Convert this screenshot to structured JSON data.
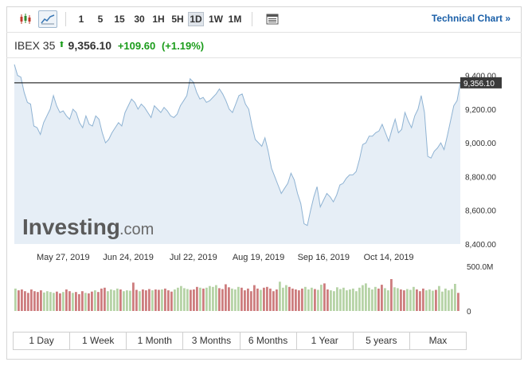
{
  "toolbar": {
    "timeframes": [
      {
        "label": "1",
        "active": false
      },
      {
        "label": "5",
        "active": false
      },
      {
        "label": "15",
        "active": false
      },
      {
        "label": "30",
        "active": false
      },
      {
        "label": "1H",
        "active": false
      },
      {
        "label": "5H",
        "active": false
      },
      {
        "label": "1D",
        "active": true
      },
      {
        "label": "1W",
        "active": false
      },
      {
        "label": "1M",
        "active": false
      }
    ],
    "technical_chart_label": "Technical Chart »"
  },
  "quote": {
    "name": "IBEX 35",
    "arrow": "⬆",
    "price": "9,356.10",
    "change": "+109.60",
    "change_pct": "(+1.19%)"
  },
  "chart_data": {
    "type": "area",
    "ylim": [
      8400,
      9450
    ],
    "yticks": [
      {
        "value": 9400,
        "label": "9,400.00"
      },
      {
        "value": 9200,
        "label": "9,200.00"
      },
      {
        "value": 9000,
        "label": "9,000.00"
      },
      {
        "value": 8800,
        "label": "8,800.00"
      },
      {
        "value": 8600,
        "label": "8,600.00"
      },
      {
        "value": 8400,
        "label": "8,400.00"
      }
    ],
    "xticks": [
      {
        "index": 15,
        "label": "May 27, 2019"
      },
      {
        "index": 35,
        "label": "Jun 24, 2019"
      },
      {
        "index": 55,
        "label": "Jul 22, 2019"
      },
      {
        "index": 75,
        "label": "Aug 19, 2019"
      },
      {
        "index": 95,
        "label": "Sep 16, 2019"
      },
      {
        "index": 115,
        "label": "Oct 14, 2019"
      }
    ],
    "current_value": 9356.1,
    "current_label": "9,356.10",
    "watermark_main": "Investing",
    "watermark_suffix": ".com",
    "values": [
      9465,
      9400,
      9390,
      9300,
      9240,
      9230,
      9100,
      9090,
      9050,
      9120,
      9160,
      9200,
      9280,
      9220,
      9180,
      9190,
      9160,
      9140,
      9200,
      9180,
      9120,
      9090,
      9160,
      9110,
      9100,
      9160,
      9140,
      9060,
      9000,
      9020,
      9060,
      9090,
      9120,
      9100,
      9180,
      9220,
      9260,
      9240,
      9200,
      9230,
      9210,
      9180,
      9150,
      9220,
      9200,
      9180,
      9210,
      9190,
      9160,
      9150,
      9170,
      9220,
      9250,
      9280,
      9380,
      9360,
      9300,
      9260,
      9270,
      9240,
      9250,
      9270,
      9290,
      9320,
      9290,
      9250,
      9200,
      9180,
      9230,
      9280,
      9290,
      9230,
      9200,
      9100,
      9020,
      9000,
      8980,
      9030,
      8950,
      8850,
      8800,
      8750,
      8700,
      8730,
      8760,
      8820,
      8780,
      8700,
      8640,
      8520,
      8510,
      8600,
      8680,
      8740,
      8620,
      8660,
      8700,
      8680,
      8650,
      8690,
      8750,
      8760,
      8790,
      8810,
      8810,
      8830,
      8900,
      8990,
      9000,
      9040,
      9040,
      9060,
      9070,
      9110,
      9060,
      9010,
      9080,
      9140,
      9060,
      9080,
      9180,
      9130,
      9090,
      9160,
      9200,
      9280,
      9180,
      8920,
      8910,
      8950,
      8970,
      9000,
      8960,
      9040,
      9130,
      9220,
      9250,
      9356
    ],
    "volume": {
      "axis_labels": [
        "500.0M",
        "0"
      ],
      "max": 500,
      "values": [
        260,
        240,
        250,
        230,
        210,
        250,
        230,
        220,
        240,
        215,
        230,
        220,
        210,
        225,
        205,
        220,
        250,
        230,
        210,
        220,
        195,
        230,
        210,
        205,
        225,
        240,
        220,
        260,
        270,
        230,
        250,
        240,
        260,
        250,
        230,
        240,
        235,
        330,
        245,
        230,
        250,
        240,
        255,
        240,
        250,
        245,
        250,
        260,
        240,
        225,
        250,
        270,
        290,
        265,
        255,
        245,
        250,
        280,
        270,
        260,
        270,
        290,
        280,
        300,
        265,
        255,
        310,
        275,
        260,
        250,
        280,
        270,
        240,
        260,
        230,
        300,
        260,
        245,
        270,
        280,
        260,
        230,
        250,
        340,
        270,
        300,
        280,
        260,
        250,
        240,
        260,
        280,
        250,
        270,
        255,
        245,
        305,
        320,
        250,
        240,
        230,
        275,
        255,
        270,
        240,
        250,
        260,
        230,
        270,
        300,
        320,
        270,
        250,
        280,
        260,
        305,
        265,
        240,
        370,
        275,
        265,
        250,
        240,
        255,
        245,
        280,
        250,
        230,
        260,
        240,
        250,
        235,
        245,
        290,
        225,
        260,
        240,
        255,
        315,
        210
      ]
    }
  },
  "ranges": [
    "1 Day",
    "1 Week",
    "1 Month",
    "3 Months",
    "6 Months",
    "1 Year",
    "5 years",
    "Max"
  ],
  "colors": {
    "line": "#8fb3d3",
    "area": "#e6eef6",
    "current_line": "#000000",
    "label_bg": "#3a3a3a",
    "vol_up": "#b6d3a6",
    "vol_down": "#cd7d7e",
    "up_text": "#1a9c1a",
    "link": "#1a5fa8"
  }
}
